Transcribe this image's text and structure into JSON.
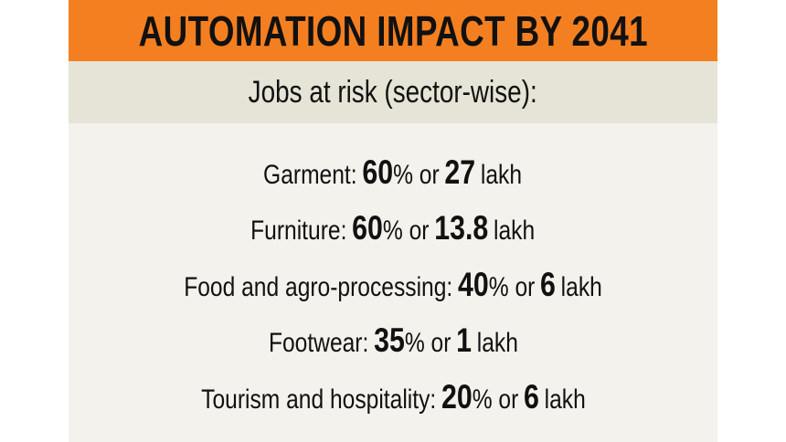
{
  "header": {
    "title": "AUTOMATION IMPACT BY 2041",
    "subtitle": "Jobs at risk (sector-wise):"
  },
  "rows": [
    {
      "sector": "Garment:",
      "percent": 60,
      "connector": "% or",
      "amount": 27,
      "unit": "lakh"
    },
    {
      "sector": "Furniture:",
      "percent": 60,
      "connector": "% or",
      "amount": 13.8,
      "unit": "lakh"
    },
    {
      "sector": "Food and agro-processing:",
      "percent": 40,
      "connector": "% or",
      "amount": 6,
      "unit": "lakh"
    },
    {
      "sector": "Footwear:",
      "percent": 35,
      "connector": "% or",
      "amount": 1,
      "unit": "lakh"
    },
    {
      "sector": "Tourism and hospitality:",
      "percent": 20,
      "connector": "% or",
      "amount": 6,
      "unit": "lakh"
    }
  ]
}
